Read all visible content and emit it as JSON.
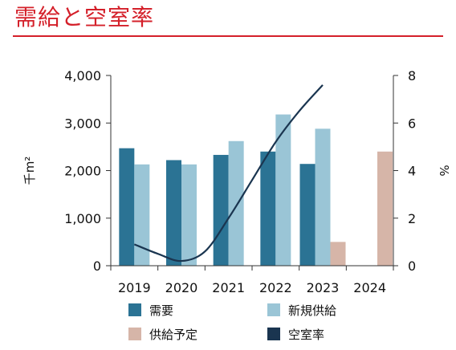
{
  "title": "需給と空室率",
  "colors": {
    "title": "#d4202a",
    "demand": "#2b7394",
    "supply": "#9ac5d6",
    "planned": "#d6b5a8",
    "vacancy": "#1a3550"
  },
  "chart_data": {
    "type": "bar+line",
    "title": "需給と空室率",
    "categories": [
      "2019",
      "2020",
      "2021",
      "2022",
      "2023",
      "2024"
    ],
    "ylabel_left": "千m²",
    "ylabel_right": "%",
    "ylim_left": [
      0,
      4000
    ],
    "ylim_right": [
      0,
      8
    ],
    "yticks_left": [
      "0",
      "1,000",
      "2,000",
      "3,000",
      "4,000"
    ],
    "yticks_right": [
      "0",
      "2",
      "4",
      "6",
      "8"
    ],
    "series": [
      {
        "name": "需要",
        "type": "bar",
        "axis": "left",
        "values": [
          2470,
          2220,
          2330,
          2400,
          2140,
          null
        ]
      },
      {
        "name": "新規供給",
        "type": "bar",
        "axis": "left",
        "values": [
          2130,
          2130,
          2620,
          3180,
          2880,
          null
        ]
      },
      {
        "name": "供給予定",
        "type": "bar",
        "axis": "left",
        "values": [
          null,
          null,
          null,
          null,
          500,
          2400
        ]
      },
      {
        "name": "空室率",
        "type": "line",
        "axis": "right",
        "points": [
          [
            2019,
            0.9
          ],
          [
            2019.5,
            0.5
          ],
          [
            2020,
            0.2
          ],
          [
            2020.5,
            0.6
          ],
          [
            2021,
            2.0
          ],
          [
            2021.5,
            3.6
          ],
          [
            2022,
            5.2
          ],
          [
            2022.5,
            6.5
          ],
          [
            2023,
            7.6
          ]
        ]
      }
    ],
    "legend": [
      "需要",
      "新規供給",
      "供給予定",
      "空室率"
    ],
    "legend_position": "bottom",
    "grid": false
  }
}
